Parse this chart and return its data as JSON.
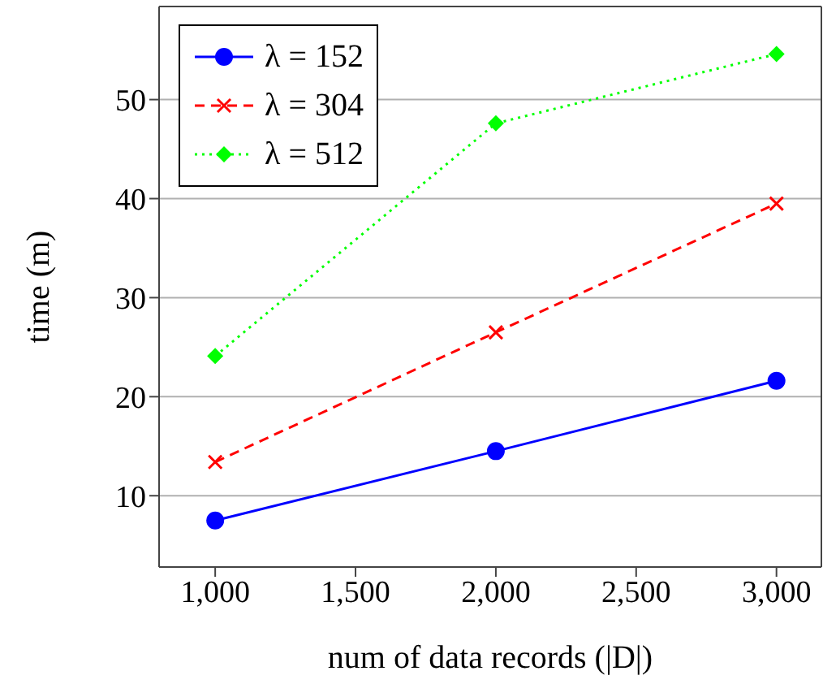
{
  "chart_data": {
    "type": "line",
    "xlabel": "num of data records (|D|)",
    "ylabel": "time (m)",
    "x": [
      1000,
      2000,
      3000
    ],
    "series": [
      {
        "name": "λ = 152",
        "color": "#0000ff",
        "values": [
          7.5,
          14.5,
          21.6
        ],
        "marker": "circle",
        "line_style": "solid"
      },
      {
        "name": "λ = 304",
        "color": "#ff0000",
        "values": [
          13.4,
          26.5,
          39.5
        ],
        "marker": "cross",
        "line_style": "dashed"
      },
      {
        "name": "λ = 512",
        "color": "#00ff00",
        "values": [
          24.1,
          47.6,
          54.6
        ],
        "marker": "diamond",
        "line_style": "dotted"
      }
    ],
    "xlim": [
      800,
      3160
    ],
    "xticks": [
      {
        "value": 1000,
        "label": "1,000"
      },
      {
        "value": 1500,
        "label": "1,500"
      },
      {
        "value": 2000,
        "label": "2,000"
      },
      {
        "value": 2500,
        "label": "2,500"
      },
      {
        "value": 3000,
        "label": "3,000"
      }
    ],
    "ylim": [
      2.8,
      59.4
    ],
    "yticks": [
      10,
      20,
      30,
      40,
      50
    ],
    "grid": "y",
    "legend": "top left"
  }
}
